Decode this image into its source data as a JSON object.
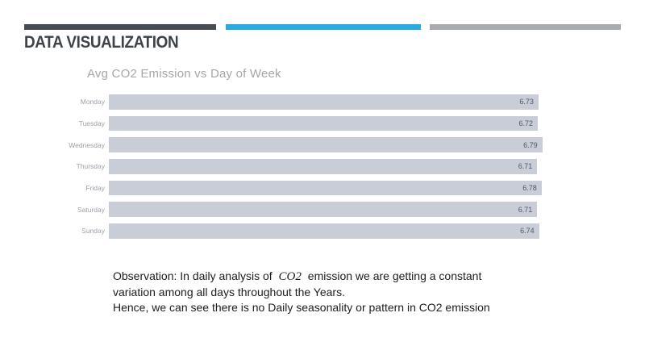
{
  "slide": {
    "title": "DATA VISUALIZATION"
  },
  "accent_bars": {
    "dark_color": "#454c54",
    "blue_color": "#29abe2",
    "gray_color": "#a7aaae"
  },
  "chart": {
    "title": "Avg CO2 Emission vs Day of Week"
  },
  "chart_data": {
    "type": "bar",
    "orientation": "horizontal",
    "title": "Avg CO2 Emission vs Day of Week",
    "categories": [
      "Monday",
      "Tuesday",
      "Wednesday",
      "Thursday",
      "Friday",
      "Saturday",
      "Sunday"
    ],
    "values": [
      6.73,
      6.72,
      6.79,
      6.71,
      6.78,
      6.71,
      6.74
    ],
    "value_labels": [
      "6.73",
      "6.72",
      "6.79",
      "6.71",
      "6.78",
      "6.71",
      "6.74"
    ],
    "xlabel": "",
    "ylabel": "",
    "xlim": [
      0,
      6.82
    ],
    "grid": false,
    "legend": false,
    "bar_color": "#c8cdd7",
    "category_label_color": "#9ba1aa",
    "value_label_color": "#4f5866"
  },
  "observation": {
    "line1_prefix": "Observation: In daily analysis of ",
    "line1_math": "CO2",
    "line1_suffix": " emission we are getting a constant",
    "line2": "variation among all days throughout the Years.",
    "line3": "Hence, we can see there is no Daily seasonality or pattern in CO2 emission"
  }
}
